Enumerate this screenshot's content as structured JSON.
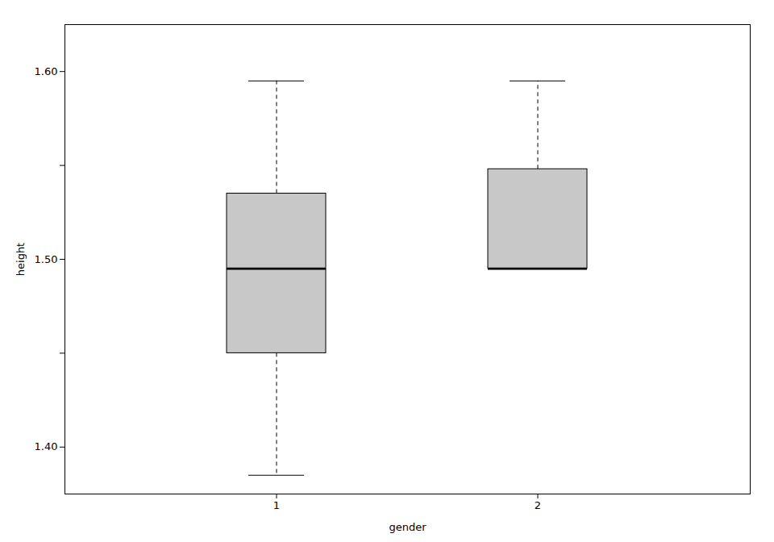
{
  "chart_data": {
    "type": "box",
    "xlabel": "gender",
    "ylabel": "height",
    "categories": [
      "1",
      "2"
    ],
    "whisker_low": [
      1.385,
      1.495
    ],
    "q1": [
      1.45,
      1.495
    ],
    "median": [
      1.495,
      1.495
    ],
    "q3": [
      1.535,
      1.548
    ],
    "whisker_high": [
      1.595,
      1.595
    ],
    "color": "#c8c8c8",
    "line_style": "dashed",
    "ylim": [
      1.375,
      1.625
    ],
    "yticks": [
      {
        "value": 1.4,
        "label": "1.40"
      },
      {
        "value": 1.45,
        "label": null
      },
      {
        "value": 1.5,
        "label": "1.50"
      },
      {
        "value": 1.55,
        "label": null
      },
      {
        "value": 1.6,
        "label": "1.60"
      }
    ],
    "grid": false
  }
}
